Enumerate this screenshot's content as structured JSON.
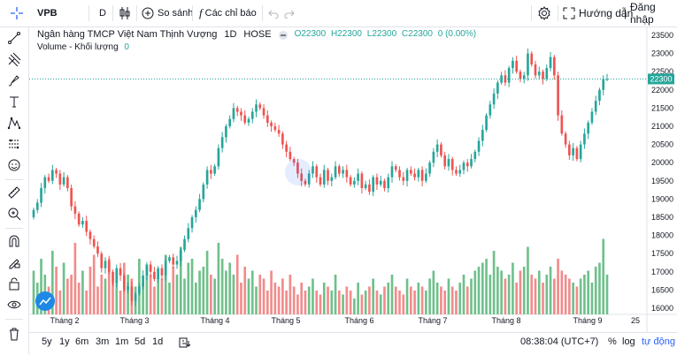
{
  "toolbar": {
    "symbol": "VPB",
    "interval": "D",
    "compare_label": "So sánh",
    "indicators_label": "Các chỉ báo",
    "help_label": "Hướng dẫn",
    "divider": "|",
    "login_label": "Đăng nhập"
  },
  "legend": {
    "name": "Ngân hàng TMCP Việt Nam Thịnh Vượng",
    "interval": "1D",
    "exchange": "HOSE",
    "o": "O22300",
    "h": "H22300",
    "l": "L22300",
    "c": "C22300",
    "change": "0 (0.00%)",
    "volume_label": "Volume - Khối lượng",
    "volume_value": "0"
  },
  "colors": {
    "up": "#26a69a",
    "down": "#ef5350",
    "up_vol": "#6fc08b",
    "down_vol": "#f28b8b",
    "last_price_bg": "#26a69a",
    "accent": "#2962ff"
  },
  "price_axis": [
    "23500",
    "23000",
    "22500",
    "22000",
    "21500",
    "21000",
    "20500",
    "20000",
    "19500",
    "19000",
    "18500",
    "18000",
    "17500",
    "17000",
    "16500",
    "16000"
  ],
  "last_price": "22300",
  "time_axis": [
    "Tháng 2",
    "Tháng 3",
    "Tháng 4",
    "Tháng 5",
    "Tháng 6",
    "Tháng 7",
    "Tháng 8",
    "Tháng 9",
    "25"
  ],
  "ranges": [
    "5y",
    "1y",
    "6m",
    "3m",
    "1m",
    "5d",
    "1d"
  ],
  "clock": "08:38:04 (UTC+7)",
  "percent_label": "%",
  "log_label": "log",
  "auto_label": "tự động",
  "chart_data": {
    "type": "candlestick",
    "ylim": [
      16000,
      23500
    ],
    "closes": [
      18700,
      18900,
      19300,
      19600,
      19500,
      19800,
      19700,
      19400,
      19600,
      19300,
      18800,
      18600,
      18300,
      18400,
      18100,
      17900,
      17700,
      17500,
      17100,
      17300,
      17000,
      16700,
      17100,
      16900,
      16500,
      16600,
      16200,
      16400,
      16600,
      16900,
      17200,
      17000,
      16800,
      17100,
      16900,
      17300,
      17400,
      17200,
      17300,
      17600,
      17900,
      18200,
      18500,
      18700,
      19000,
      19400,
      19800,
      19700,
      19900,
      20400,
      20700,
      21000,
      21200,
      21500,
      21400,
      21300,
      21100,
      21200,
      21400,
      21600,
      21500,
      21300,
      21100,
      21000,
      20900,
      20800,
      20500,
      20300,
      20100,
      20000,
      19700,
      19500,
      19400,
      19700,
      19900,
      19600,
      19400,
      19800,
      19500,
      19600,
      19900,
      19700,
      19800,
      19600,
      19400,
      19500,
      19700,
      19300,
      19400,
      19200,
      19600,
      19400,
      19500,
      19300,
      19600,
      19900,
      19800,
      19600,
      19500,
      19800,
      19700,
      19600,
      19800,
      19500,
      19700,
      20000,
      20300,
      20500,
      20200,
      19900,
      20100,
      19800,
      19700,
      19800,
      20000,
      19900,
      20100,
      20300,
      20600,
      20900,
      21300,
      21600,
      21900,
      22200,
      22400,
      22200,
      22600,
      22800,
      22500,
      22300,
      22400,
      23000,
      22700,
      22400,
      22500,
      22300,
      22600,
      22900,
      22400,
      21300,
      20800,
      20500,
      20200,
      20400,
      20100,
      20500,
      20800,
      21100,
      21400,
      21700,
      22000,
      22300,
      22300
    ],
    "volumes": [
      0.55,
      0.4,
      0.7,
      0.5,
      0.35,
      0.8,
      0.6,
      0.3,
      0.65,
      0.45,
      0.5,
      0.9,
      0.4,
      0.55,
      0.3,
      0.6,
      0.75,
      0.35,
      0.5,
      0.45,
      0.7,
      0.4,
      0.55,
      0.3,
      0.65,
      0.5,
      0.45,
      0.35,
      0.7,
      0.4,
      0.6,
      0.5,
      0.35,
      0.55,
      0.45,
      0.75,
      0.4,
      0.6,
      0.5,
      0.85,
      0.45,
      0.65,
      0.7,
      0.4,
      0.55,
      0.6,
      0.8,
      0.5,
      0.45,
      0.9,
      0.7,
      0.55,
      0.65,
      0.5,
      0.75,
      0.4,
      0.6,
      0.45,
      0.55,
      0.35,
      0.5,
      0.45,
      0.3,
      0.55,
      0.4,
      0.35,
      0.45,
      0.3,
      0.5,
      0.35,
      0.25,
      0.4,
      0.3,
      0.35,
      0.45,
      0.3,
      0.25,
      0.4,
      0.35,
      0.3,
      0.5,
      0.3,
      0.25,
      0.35,
      0.3,
      0.2,
      0.4,
      0.25,
      0.3,
      0.35,
      0.45,
      0.3,
      0.25,
      0.35,
      0.4,
      0.5,
      0.35,
      0.3,
      0.25,
      0.45,
      0.35,
      0.3,
      0.4,
      0.35,
      0.3,
      0.45,
      0.55,
      0.4,
      0.35,
      0.3,
      0.45,
      0.35,
      0.3,
      0.4,
      0.5,
      0.35,
      0.45,
      0.55,
      0.6,
      0.65,
      0.7,
      0.5,
      0.8,
      0.6,
      0.55,
      0.45,
      0.5,
      0.65,
      0.4,
      0.55,
      0.6,
      0.85,
      0.5,
      0.45,
      0.55,
      0.4,
      0.5,
      0.6,
      0.45,
      0.7,
      0.55,
      0.5,
      0.45,
      0.4,
      0.35,
      0.45,
      0.5,
      0.55,
      0.4,
      0.6,
      0.65,
      0.95,
      0.5
    ]
  }
}
